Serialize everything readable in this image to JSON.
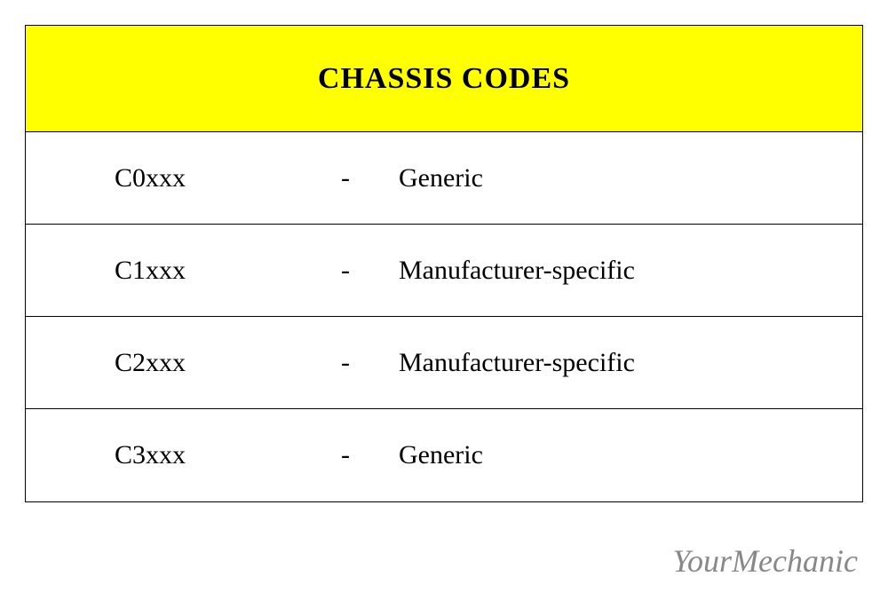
{
  "table": {
    "title": "CHASSIS CODES",
    "header_background": "#ffff00",
    "border_color": "#000000",
    "text_color": "#000000",
    "title_fontsize": 34,
    "row_fontsize": 30,
    "rows": [
      {
        "code": "C0xxx",
        "separator": "-",
        "description": "Generic"
      },
      {
        "code": "C1xxx",
        "separator": "-",
        "description": "Manufacturer-specific"
      },
      {
        "code": "C2xxx",
        "separator": "-",
        "description": "Manufacturer-specific"
      },
      {
        "code": "C3xxx",
        "separator": "-",
        "description": "Generic"
      }
    ]
  },
  "watermark": {
    "text": "YourMechanic",
    "color": "#888888",
    "fontsize": 36
  }
}
